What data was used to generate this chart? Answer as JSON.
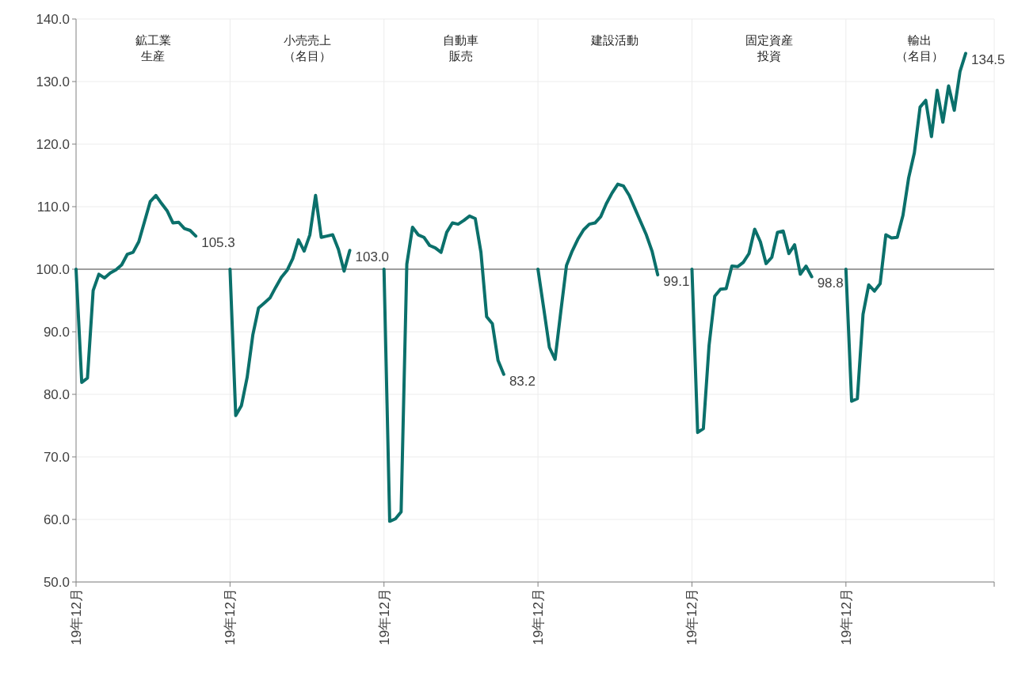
{
  "chart_data": {
    "type": "line",
    "categories": [
      "19年12月",
      null,
      null,
      null,
      null,
      null,
      null,
      null,
      null,
      null,
      null,
      null,
      null,
      null,
      null,
      null,
      null,
      null,
      null,
      null,
      null,
      null,
      null,
      null,
      null,
      null,
      null,
      "19年12月",
      null,
      null,
      null,
      null,
      null,
      null,
      null,
      null,
      null,
      null,
      null,
      null,
      null,
      null,
      null,
      null,
      null,
      null,
      null,
      null,
      null,
      null,
      null,
      null,
      null,
      null,
      "19年12月",
      null,
      null,
      null,
      null,
      null,
      null,
      null,
      null,
      null,
      null,
      null,
      null,
      null,
      null,
      null,
      null,
      null,
      null,
      null,
      null,
      null,
      null,
      null,
      null,
      null,
      null,
      "19年12月",
      null,
      null,
      null,
      null,
      null,
      null,
      null,
      null,
      null,
      null,
      null,
      null,
      null,
      null,
      null,
      null,
      null,
      null,
      null,
      null,
      null,
      null,
      null,
      null,
      null,
      null,
      "19年12月",
      null,
      null,
      null,
      null,
      null,
      null,
      null,
      null,
      null,
      null,
      null,
      null,
      null,
      null,
      null,
      null,
      null,
      null,
      null,
      null,
      null,
      null,
      null,
      null,
      null,
      null,
      "19年12月",
      null,
      null,
      null,
      null,
      null,
      null,
      null,
      null,
      null,
      null,
      null,
      null,
      null,
      null,
      null,
      null,
      null,
      null,
      null,
      null,
      null,
      null,
      null,
      null,
      null,
      null
    ],
    "series": [
      {
        "color": "#0b706b",
        "values": [
          100.0,
          81.9,
          82.6,
          96.6,
          99.2,
          98.6,
          99.4,
          99.9,
          100.7,
          102.4,
          102.7,
          104.4,
          107.6,
          110.8,
          111.8,
          110.5,
          109.3,
          107.4,
          107.5,
          106.5,
          106.2,
          105.3,
          null,
          null,
          null,
          null,
          null,
          100.0,
          76.6,
          78.2,
          82.7,
          89.5,
          93.8,
          94.6,
          95.4,
          97.1,
          98.7,
          99.8,
          101.7,
          104.7,
          102.9,
          105.5,
          111.8,
          105.1,
          105.3,
          105.5,
          103.2,
          99.7,
          103.0,
          null,
          null,
          null,
          null,
          null,
          100.0,
          59.7,
          60.1,
          61.2,
          100.8,
          106.7,
          105.5,
          105.1,
          103.8,
          103.4,
          102.7,
          105.9,
          107.4,
          107.2,
          107.8,
          108.5,
          108.1,
          102.7,
          92.4,
          91.3,
          85.4,
          83.2,
          null,
          null,
          null,
          null,
          null,
          100.0,
          93.8,
          87.5,
          85.6,
          93.2,
          100.6,
          102.9,
          104.8,
          106.3,
          107.2,
          107.4,
          108.4,
          110.5,
          112.2,
          113.6,
          113.3,
          111.8,
          109.7,
          107.6,
          105.5,
          102.9,
          99.1,
          null,
          null,
          null,
          null,
          null,
          100.0,
          73.9,
          74.5,
          87.8,
          95.7,
          96.8,
          96.9,
          100.5,
          100.4,
          101.1,
          102.5,
          106.4,
          104.4,
          100.9,
          101.9,
          105.9,
          106.1,
          102.5,
          103.9,
          99.2,
          100.5,
          98.8,
          null,
          null,
          null,
          null,
          null,
          100.0,
          78.9,
          79.3,
          92.8,
          97.5,
          96.5,
          97.7,
          105.5,
          105.0,
          105.1,
          108.6,
          114.6,
          118.6,
          125.9,
          127.0,
          121.2,
          128.6,
          123.5,
          129.3,
          125.4,
          131.6,
          134.5,
          null,
          null,
          null,
          null,
          null
        ],
        "value_labels": [
          null,
          null,
          null,
          null,
          null,
          null,
          null,
          null,
          null,
          null,
          null,
          null,
          null,
          null,
          null,
          null,
          null,
          null,
          null,
          null,
          null,
          "105.3",
          null,
          null,
          null,
          null,
          null,
          null,
          null,
          null,
          null,
          null,
          null,
          null,
          null,
          null,
          null,
          null,
          null,
          null,
          null,
          null,
          null,
          null,
          null,
          null,
          null,
          null,
          "103.0",
          null,
          null,
          null,
          null,
          null,
          null,
          null,
          null,
          null,
          null,
          null,
          null,
          null,
          null,
          null,
          null,
          null,
          null,
          null,
          null,
          null,
          null,
          null,
          null,
          null,
          null,
          "83.2",
          null,
          null,
          null,
          null,
          null,
          null,
          null,
          null,
          null,
          null,
          null,
          null,
          null,
          null,
          null,
          null,
          null,
          null,
          null,
          null,
          null,
          null,
          null,
          null,
          null,
          null,
          "99.1",
          null,
          null,
          null,
          null,
          null,
          null,
          null,
          null,
          null,
          null,
          null,
          null,
          null,
          null,
          null,
          null,
          null,
          null,
          null,
          null,
          null,
          null,
          null,
          null,
          null,
          null,
          "98.8",
          null,
          null,
          null,
          null,
          null,
          null,
          null,
          null,
          null,
          null,
          null,
          null,
          null,
          null,
          null,
          null,
          null,
          null,
          null,
          null,
          null,
          null,
          null,
          null,
          null,
          null,
          "134.5",
          null,
          null,
          null,
          null,
          null
        ]
      }
    ],
    "ylim": [
      50,
      140
    ],
    "yticks": [
      {
        "value": 50,
        "label": "50.0"
      },
      {
        "value": 60,
        "label": "60.0"
      },
      {
        "value": 70,
        "label": "70.0"
      },
      {
        "value": 80,
        "label": "80.0"
      },
      {
        "value": 90,
        "label": "90.0"
      },
      {
        "value": 100,
        "label": "100.0"
      },
      {
        "value": 110,
        "label": "110.0"
      },
      {
        "value": 120,
        "label": "120.0"
      },
      {
        "value": 130,
        "label": "130.0"
      },
      {
        "value": 140,
        "label": "140.0"
      }
    ],
    "grid": true,
    "ref_lines": [
      {
        "axis": "y",
        "value": 100,
        "color": "#808080"
      }
    ],
    "annotations": [
      "鉱工業生産",
      "小売売上（名目）",
      "自動車販売",
      "建設活動",
      "固定資産投資",
      "輸出（名目）"
    ]
  }
}
